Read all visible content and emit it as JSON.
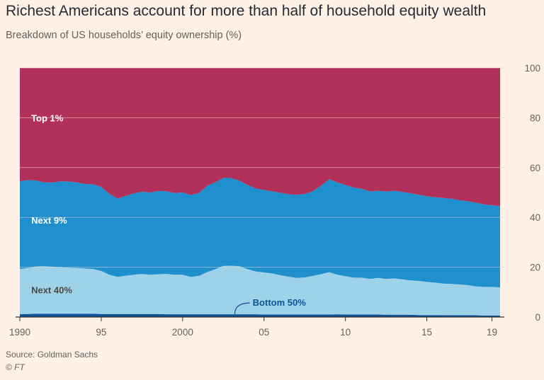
{
  "header": {
    "title": "Richest Americans account for more than half of household equity wealth",
    "subtitle": "Breakdown of US households’ equity ownership (%)"
  },
  "footer": {
    "source": "Source: Goldman Sachs",
    "copyright": "© FT"
  },
  "chart_data": {
    "type": "area",
    "stacked": true,
    "xlim": [
      1990,
      2019.5
    ],
    "ylim": [
      0,
      100
    ],
    "y_axis_side": "right",
    "y_ticks": [
      0,
      20,
      40,
      60,
      80,
      100
    ],
    "x_ticks": [
      {
        "value": 1990,
        "label": "1990"
      },
      {
        "value": 1995,
        "label": "95"
      },
      {
        "value": 2000,
        "label": "2000"
      },
      {
        "value": 2005,
        "label": "05"
      },
      {
        "value": 2010,
        "label": "10"
      },
      {
        "value": 2015,
        "label": "15"
      },
      {
        "value": 2019,
        "label": "19"
      }
    ],
    "grid": true,
    "x": [
      1990,
      1990.5,
      1991,
      1991.5,
      1992,
      1992.5,
      1993,
      1993.5,
      1994,
      1994.5,
      1995,
      1995.5,
      1996,
      1996.5,
      1997,
      1997.5,
      1998,
      1998.5,
      1999,
      1999.5,
      2000,
      2000.5,
      2001,
      2001.5,
      2002,
      2002.5,
      2003,
      2003.5,
      2004,
      2004.5,
      2005,
      2005.5,
      2006,
      2006.5,
      2007,
      2007.5,
      2008,
      2008.5,
      2009,
      2009.5,
      2010,
      2010.5,
      2011,
      2011.5,
      2012,
      2012.5,
      2013,
      2013.5,
      2014,
      2014.5,
      2015,
      2015.5,
      2016,
      2016.5,
      2017,
      2017.5,
      2018,
      2018.5,
      2019,
      2019.5
    ],
    "series": [
      {
        "name": "Bottom 50%",
        "color": "#0f5499",
        "values": [
          1.2,
          1.2,
          1.3,
          1.3,
          1.3,
          1.3,
          1.3,
          1.3,
          1.3,
          1.3,
          1.2,
          1.2,
          1.2,
          1.2,
          1.2,
          1.2,
          1.2,
          1.2,
          1.1,
          1.1,
          1.1,
          1.1,
          1.1,
          1.1,
          1.1,
          1.1,
          1.1,
          1.1,
          1.1,
          1.1,
          1.0,
          1.0,
          1.0,
          1.0,
          1.0,
          1.0,
          1.0,
          1.0,
          1.0,
          1.1,
          1.0,
          1.0,
          1.0,
          1.0,
          1.0,
          0.9,
          0.9,
          0.9,
          0.9,
          0.8,
          0.8,
          0.8,
          0.8,
          0.7,
          0.7,
          0.7,
          0.7,
          0.6,
          0.6,
          0.6
        ]
      },
      {
        "name": "Next 40%",
        "color": "#9dd2e8",
        "values": [
          18.1,
          18.5,
          19.0,
          19.1,
          18.9,
          18.7,
          18.5,
          18.4,
          18.2,
          18.0,
          17.3,
          15.8,
          14.9,
          15.4,
          15.8,
          16.1,
          15.8,
          16.0,
          16.2,
          15.9,
          15.9,
          15.0,
          15.4,
          16.9,
          18.1,
          19.4,
          19.5,
          19.3,
          18.1,
          17.2,
          16.9,
          16.5,
          15.8,
          15.2,
          14.7,
          14.9,
          15.5,
          16.2,
          17.0,
          15.9,
          15.4,
          14.8,
          14.8,
          14.3,
          14.7,
          14.4,
          14.6,
          14.2,
          13.8,
          13.7,
          13.3,
          13.0,
          12.6,
          12.6,
          12.4,
          12.1,
          11.6,
          11.5,
          11.5,
          11.3
        ]
      },
      {
        "name": "Next 9%",
        "color": "#1f8fce",
        "values": [
          35.2,
          35.3,
          34.5,
          33.6,
          33.8,
          34.5,
          34.6,
          34.3,
          33.9,
          34.0,
          33.7,
          32.5,
          31.4,
          32.0,
          32.6,
          33.0,
          33.0,
          33.4,
          33.2,
          32.8,
          33.0,
          32.9,
          33.3,
          34.6,
          34.8,
          35.4,
          35.2,
          34.3,
          33.8,
          33.3,
          33.1,
          33.0,
          33.1,
          33.1,
          33.4,
          33.5,
          34.0,
          35.5,
          37.3,
          37.1,
          36.6,
          36.2,
          35.7,
          35.1,
          35.0,
          35.1,
          35.2,
          35.1,
          35.0,
          34.6,
          34.4,
          34.3,
          34.4,
          34.2,
          33.8,
          33.7,
          33.6,
          33.1,
          32.8,
          32.6
        ]
      },
      {
        "name": "Top 1%",
        "color": "#b1305a",
        "values": [
          45.5,
          45.0,
          45.2,
          46.0,
          46.0,
          45.5,
          45.6,
          46.0,
          46.6,
          46.7,
          47.8,
          50.5,
          52.5,
          51.4,
          50.4,
          49.7,
          50.0,
          49.4,
          49.5,
          50.2,
          50.0,
          51.0,
          50.2,
          47.4,
          46.0,
          44.1,
          44.2,
          45.3,
          47.0,
          48.4,
          49.0,
          49.5,
          50.1,
          50.7,
          50.9,
          50.6,
          49.5,
          47.3,
          44.7,
          45.9,
          47.0,
          48.0,
          48.5,
          49.6,
          49.3,
          49.6,
          49.3,
          49.8,
          50.3,
          50.9,
          51.5,
          51.9,
          52.2,
          52.5,
          53.1,
          53.5,
          54.1,
          54.8,
          55.1,
          55.5
        ]
      }
    ],
    "annotations": [
      {
        "text": "Top 1%",
        "color": "#ffffff",
        "at_x": 1990.7,
        "at_y": 78.5
      },
      {
        "text": "Next 9%",
        "color": "#ffffff",
        "at_x": 1990.7,
        "at_y": 37.5
      },
      {
        "text": "Next 40%",
        "color": "#4d4845",
        "at_x": 1990.7,
        "at_y": 9.5
      },
      {
        "text": "Bottom 50%",
        "color": "#0f5499",
        "at_x": 2004.3,
        "at_y": 4.5,
        "pointer_to": [
          2003.2,
          1.1
        ]
      }
    ]
  }
}
